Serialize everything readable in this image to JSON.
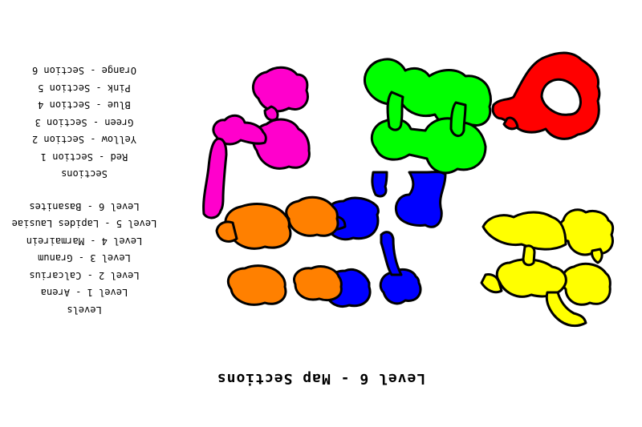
{
  "title": "Level 6 - Map Sections",
  "levels": {
    "heading": "Levels",
    "items": [
      "Level 1 - Arena",
      "Level 2 - Calcarius",
      "Level 3 - Granum",
      "Level 4 - Marmairein",
      "Level 5 - Lapides Lausiae",
      "Level 6 - Basanites"
    ]
  },
  "sections": {
    "heading": "Sections",
    "items": [
      {
        "label": "Red - Section 1",
        "color": "#ff0000"
      },
      {
        "label": "Yellow - Section 2",
        "color": "#ffff00"
      },
      {
        "label": "Green - Section 3",
        "color": "#00ff00"
      },
      {
        "label": "Blue - Section 4",
        "color": "#0000ff"
      },
      {
        "label": "Pink - Section 5",
        "color": "#ff00cc"
      },
      {
        "label": "Orange - Section 6",
        "color": "#ff8000"
      }
    ]
  }
}
